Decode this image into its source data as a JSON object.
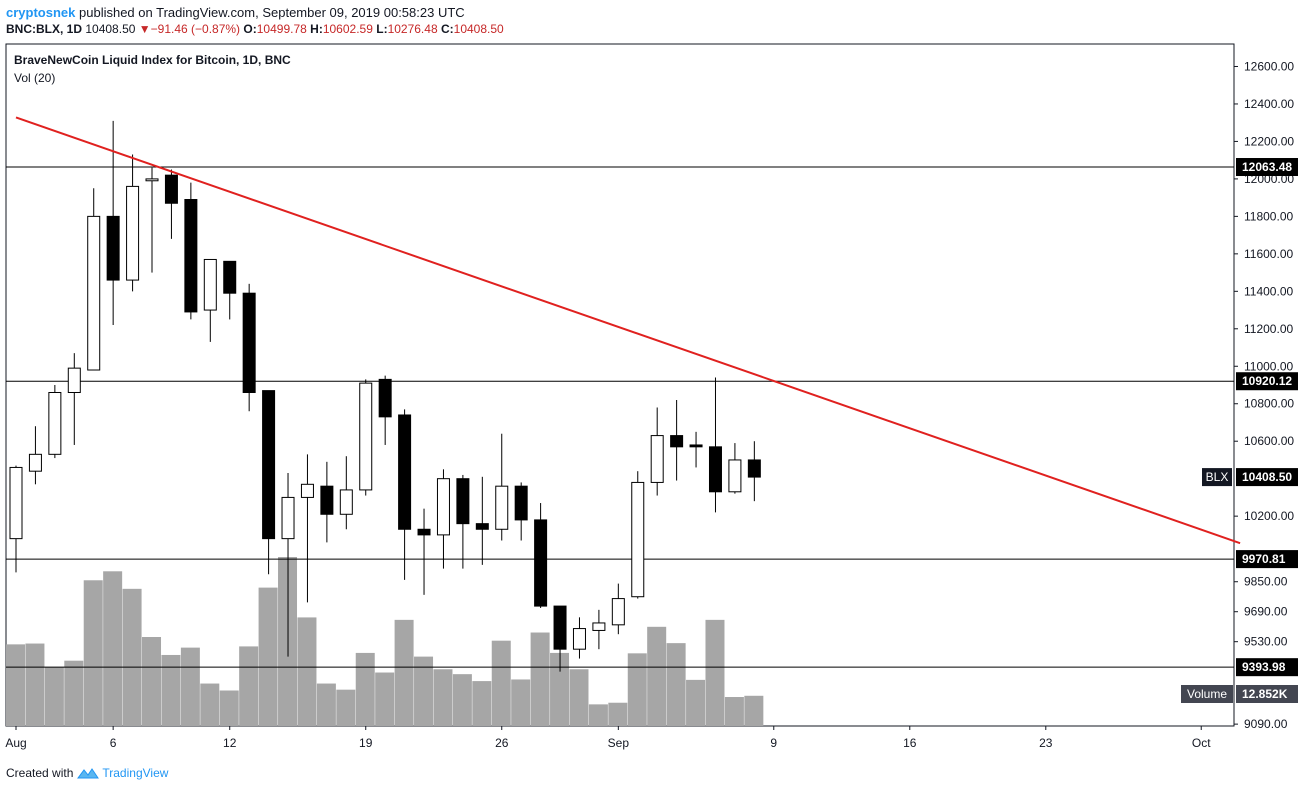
{
  "header": {
    "author": "cryptosnek",
    "published": "published on TradingView.com, September 09, 2019 00:58:23 UTC",
    "symbol": "BNC:BLX, 1D",
    "last": "10408.50",
    "change": "−91.46 (−0.87%)",
    "o_label": "O:",
    "o": "10499.78",
    "h_label": "H:",
    "h": "10602.59",
    "l_label": "L:",
    "l": "10276.48",
    "c_label": "C:",
    "c": "10408.50"
  },
  "legend": {
    "title": "BraveNewCoin Liquid Index for Bitcoin, 1D, BNC",
    "volume": "Vol (20)"
  },
  "footer": {
    "created_with": "Created with",
    "brand": "TradingView"
  },
  "colors": {
    "up_fill": "#ffffff",
    "down_fill": "#000000",
    "wick": "#000000",
    "volume": "#a6a6a6",
    "trendline": "#e0211f",
    "label_bg": "#000000",
    "label_text": "#ffffff",
    "blx_label_bg": "#131722",
    "volume_label_bg": "#434651"
  },
  "chart_data": {
    "type": "candlestick",
    "title": "BraveNewCoin Liquid Index for Bitcoin, 1D, BNC",
    "candles": [
      {
        "date": "2019-08-01",
        "o": 10080,
        "h": 10470,
        "l": 9900,
        "c": 10460
      },
      {
        "date": "2019-08-02",
        "o": 10440,
        "h": 10680,
        "l": 10370,
        "c": 10530
      },
      {
        "date": "2019-08-03",
        "o": 10530,
        "h": 10900,
        "l": 10510,
        "c": 10860
      },
      {
        "date": "2019-08-04",
        "o": 10860,
        "h": 11070,
        "l": 10580,
        "c": 10990
      },
      {
        "date": "2019-08-05",
        "o": 10980,
        "h": 11950,
        "l": 10980,
        "c": 11800
      },
      {
        "date": "2019-08-06",
        "o": 11800,
        "h": 12310,
        "l": 11220,
        "c": 11460
      },
      {
        "date": "2019-08-07",
        "o": 11460,
        "h": 12130,
        "l": 11400,
        "c": 11960
      },
      {
        "date": "2019-08-08",
        "o": 11990,
        "h": 12060,
        "l": 11500,
        "c": 12000
      },
      {
        "date": "2019-08-09",
        "o": 12020,
        "h": 12050,
        "l": 11680,
        "c": 11870
      },
      {
        "date": "2019-08-10",
        "o": 11890,
        "h": 11980,
        "l": 11250,
        "c": 11290
      },
      {
        "date": "2019-08-11",
        "o": 11300,
        "h": 11570,
        "l": 11130,
        "c": 11570
      },
      {
        "date": "2019-08-12",
        "o": 11560,
        "h": 11560,
        "l": 11250,
        "c": 11390
      },
      {
        "date": "2019-08-13",
        "o": 11390,
        "h": 11440,
        "l": 10760,
        "c": 10860
      },
      {
        "date": "2019-08-14",
        "o": 10870,
        "h": 10870,
        "l": 9890,
        "c": 10080
      },
      {
        "date": "2019-08-15",
        "o": 10080,
        "h": 10430,
        "l": 9450,
        "c": 10300
      },
      {
        "date": "2019-08-16",
        "o": 10300,
        "h": 10530,
        "l": 9740,
        "c": 10370
      },
      {
        "date": "2019-08-17",
        "o": 10360,
        "h": 10490,
        "l": 10060,
        "c": 10210
      },
      {
        "date": "2019-08-18",
        "o": 10210,
        "h": 10520,
        "l": 10130,
        "c": 10340
      },
      {
        "date": "2019-08-19",
        "o": 10340,
        "h": 10930,
        "l": 10310,
        "c": 10910
      },
      {
        "date": "2019-08-20",
        "o": 10930,
        "h": 10950,
        "l": 10580,
        "c": 10730
      },
      {
        "date": "2019-08-21",
        "o": 10740,
        "h": 10770,
        "l": 9860,
        "c": 10130
      },
      {
        "date": "2019-08-22",
        "o": 10130,
        "h": 10240,
        "l": 9780,
        "c": 10100
      },
      {
        "date": "2019-08-23",
        "o": 10100,
        "h": 10450,
        "l": 9920,
        "c": 10400
      },
      {
        "date": "2019-08-24",
        "o": 10400,
        "h": 10420,
        "l": 9920,
        "c": 10160
      },
      {
        "date": "2019-08-25",
        "o": 10160,
        "h": 10410,
        "l": 9940,
        "c": 10130
      },
      {
        "date": "2019-08-26",
        "o": 10130,
        "h": 10640,
        "l": 10070,
        "c": 10360
      },
      {
        "date": "2019-08-27",
        "o": 10360,
        "h": 10380,
        "l": 10070,
        "c": 10180
      },
      {
        "date": "2019-08-28",
        "o": 10180,
        "h": 10270,
        "l": 9710,
        "c": 9720
      },
      {
        "date": "2019-08-29",
        "o": 9720,
        "h": 9720,
        "l": 9370,
        "c": 9490
      },
      {
        "date": "2019-08-30",
        "o": 9490,
        "h": 9660,
        "l": 9440,
        "c": 9600
      },
      {
        "date": "2019-08-31",
        "o": 9590,
        "h": 9700,
        "l": 9490,
        "c": 9630
      },
      {
        "date": "2019-09-01",
        "o": 9620,
        "h": 9840,
        "l": 9570,
        "c": 9760
      },
      {
        "date": "2019-09-02",
        "o": 9770,
        "h": 10440,
        "l": 9760,
        "c": 10380
      },
      {
        "date": "2019-09-03",
        "o": 10380,
        "h": 10780,
        "l": 10310,
        "c": 10630
      },
      {
        "date": "2019-09-04",
        "o": 10630,
        "h": 10820,
        "l": 10390,
        "c": 10570
      },
      {
        "date": "2019-09-05",
        "o": 10580,
        "h": 10650,
        "l": 10460,
        "c": 10570
      },
      {
        "date": "2019-09-06",
        "o": 10570,
        "h": 10940,
        "l": 10220,
        "c": 10330
      },
      {
        "date": "2019-09-07",
        "o": 10330,
        "h": 10590,
        "l": 10320,
        "c": 10500
      },
      {
        "date": "2019-09-08",
        "o": 10500,
        "h": 10600,
        "l": 10280,
        "c": 10408.5
      }
    ],
    "volume": [
      {
        "date": "2019-08-01",
        "v": 2.0
      },
      {
        "date": "2019-08-02",
        "v": 2.02
      },
      {
        "date": "2019-08-03",
        "v": 1.44
      },
      {
        "date": "2019-08-04",
        "v": 1.6
      },
      {
        "date": "2019-08-05",
        "v": 3.57
      },
      {
        "date": "2019-08-06",
        "v": 3.79
      },
      {
        "date": "2019-08-07",
        "v": 3.36
      },
      {
        "date": "2019-08-08",
        "v": 2.18
      },
      {
        "date": "2019-08-09",
        "v": 1.74
      },
      {
        "date": "2019-08-10",
        "v": 1.92
      },
      {
        "date": "2019-08-11",
        "v": 1.04
      },
      {
        "date": "2019-08-12",
        "v": 0.87
      },
      {
        "date": "2019-08-13",
        "v": 1.95
      },
      {
        "date": "2019-08-14",
        "v": 3.39
      },
      {
        "date": "2019-08-15",
        "v": 4.14
      },
      {
        "date": "2019-08-16",
        "v": 2.66
      },
      {
        "date": "2019-08-17",
        "v": 1.04
      },
      {
        "date": "2019-08-18",
        "v": 0.89
      },
      {
        "date": "2019-08-19",
        "v": 1.79
      },
      {
        "date": "2019-08-20",
        "v": 1.31
      },
      {
        "date": "2019-08-21",
        "v": 2.6
      },
      {
        "date": "2019-08-22",
        "v": 1.7
      },
      {
        "date": "2019-08-23",
        "v": 1.39
      },
      {
        "date": "2019-08-24",
        "v": 1.27
      },
      {
        "date": "2019-08-25",
        "v": 1.1
      },
      {
        "date": "2019-08-26",
        "v": 2.09
      },
      {
        "date": "2019-08-27",
        "v": 1.14
      },
      {
        "date": "2019-08-28",
        "v": 2.29
      },
      {
        "date": "2019-08-29",
        "v": 1.79
      },
      {
        "date": "2019-08-30",
        "v": 1.39
      },
      {
        "date": "2019-08-31",
        "v": 0.53
      },
      {
        "date": "2019-09-01",
        "v": 0.57
      },
      {
        "date": "2019-09-02",
        "v": 1.78
      },
      {
        "date": "2019-09-03",
        "v": 2.43
      },
      {
        "date": "2019-09-04",
        "v": 2.03
      },
      {
        "date": "2019-09-05",
        "v": 1.13
      },
      {
        "date": "2019-09-06",
        "v": 2.6
      },
      {
        "date": "2019-09-07",
        "v": 0.71
      },
      {
        "date": "2019-09-08",
        "v": 0.74
      }
    ],
    "volume_last": "12.852K",
    "volume_label": "Volume",
    "y_ticks": [
      "12600.00",
      "12400.00",
      "12200.00",
      "12000.00",
      "11800.00",
      "11600.00",
      "11400.00",
      "11200.00",
      "11000.00",
      "10800.00",
      "10600.00",
      "10200.00",
      "9850.00",
      "9690.00",
      "9530.00",
      "9090.00"
    ],
    "y_tick_values": [
      12600,
      12400,
      12200,
      12000,
      11800,
      11600,
      11400,
      11200,
      11000,
      10800,
      10600,
      10200,
      9850,
      9690,
      9530,
      9090
    ],
    "ylim": [
      9080,
      12720
    ],
    "x_ticks": [
      {
        "label": "Aug",
        "date": "2019-08-01"
      },
      {
        "label": "6",
        "date": "2019-08-06"
      },
      {
        "label": "12",
        "date": "2019-08-12"
      },
      {
        "label": "19",
        "date": "2019-08-19"
      },
      {
        "label": "26",
        "date": "2019-08-26"
      },
      {
        "label": "Sep",
        "date": "2019-09-01"
      },
      {
        "label": "9",
        "date": "2019-09-09"
      },
      {
        "label": "16",
        "date": "2019-09-16"
      },
      {
        "label": "23",
        "date": "2019-09-23"
      },
      {
        "label": "Oct",
        "date": "2019-10-01"
      }
    ],
    "xlim": [
      "2019-08-01",
      "2019-10-03"
    ],
    "horizontal_lines": [
      {
        "value": 12063.48,
        "label": "12063.48"
      },
      {
        "value": 10920.12,
        "label": "10920.12"
      },
      {
        "value": 9970.81,
        "label": "9970.81"
      },
      {
        "value": 9393.98,
        "label": "9393.98"
      }
    ],
    "trendline": {
      "start": {
        "date": "2019-08-01",
        "value": 12328
      },
      "end": {
        "date": "2019-10-03",
        "value": 10056
      }
    },
    "last_price": {
      "symbol": "BLX",
      "label": "10408.50",
      "value": 10408.5
    }
  }
}
